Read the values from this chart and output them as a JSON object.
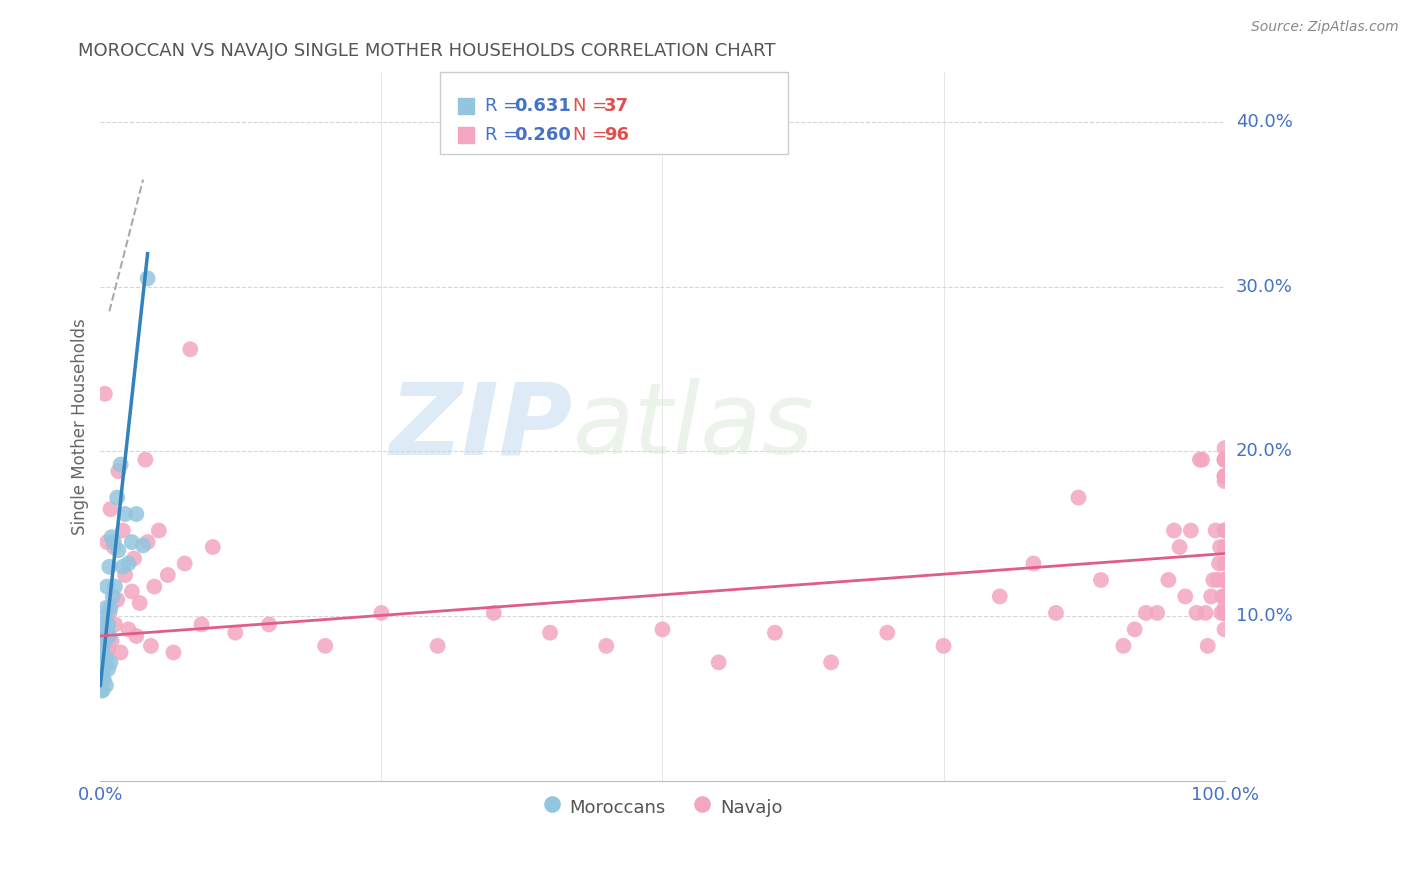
{
  "title": "MOROCCAN VS NAVAJO SINGLE MOTHER HOUSEHOLDS CORRELATION CHART",
  "source": "Source: ZipAtlas.com",
  "ylabel": "Single Mother Households",
  "watermark_zip": "ZIP",
  "watermark_atlas": "atlas",
  "legend_r1": "R = ",
  "legend_v1": "0.631",
  "legend_n1": "N = ",
  "legend_nv1": "37",
  "legend_r2": "R = ",
  "legend_v2": "0.260",
  "legend_n2": "N = ",
  "legend_nv2": "96",
  "moroccan_color": "#92c5de",
  "navajo_color": "#f4a6c0",
  "moroccan_line_color": "#3182bd",
  "navajo_line_color": "#e05c8a",
  "title_color": "#555555",
  "axis_label_color": "#4472c4",
  "right_tick_color": "#4472c4",
  "moroccan_scatter_x": [
    0.001,
    0.001,
    0.001,
    0.001,
    0.002,
    0.002,
    0.002,
    0.003,
    0.003,
    0.004,
    0.004,
    0.004,
    0.005,
    0.005,
    0.005,
    0.006,
    0.006,
    0.007,
    0.007,
    0.008,
    0.008,
    0.009,
    0.009,
    0.01,
    0.011,
    0.012,
    0.013,
    0.015,
    0.016,
    0.018,
    0.02,
    0.022,
    0.025,
    0.028,
    0.032,
    0.038,
    0.042
  ],
  "moroccan_scatter_y": [
    0.055,
    0.065,
    0.072,
    0.06,
    0.08,
    0.068,
    0.055,
    0.09,
    0.062,
    0.085,
    0.1,
    0.072,
    0.105,
    0.075,
    0.058,
    0.118,
    0.092,
    0.095,
    0.068,
    0.13,
    0.088,
    0.105,
    0.072,
    0.148,
    0.112,
    0.145,
    0.118,
    0.172,
    0.14,
    0.192,
    0.13,
    0.162,
    0.132,
    0.145,
    0.162,
    0.143,
    0.305
  ],
  "navajo_scatter_x": [
    0.003,
    0.004,
    0.005,
    0.006,
    0.007,
    0.008,
    0.009,
    0.01,
    0.012,
    0.013,
    0.015,
    0.016,
    0.018,
    0.02,
    0.022,
    0.025,
    0.028,
    0.03,
    0.032,
    0.035,
    0.04,
    0.042,
    0.045,
    0.048,
    0.052,
    0.06,
    0.065,
    0.075,
    0.08,
    0.09,
    0.1,
    0.12,
    0.15,
    0.2,
    0.25,
    0.3,
    0.35,
    0.4,
    0.45,
    0.5,
    0.55,
    0.6,
    0.65,
    0.7,
    0.75,
    0.8,
    0.83,
    0.85,
    0.87,
    0.89,
    0.91,
    0.92,
    0.93,
    0.94,
    0.95,
    0.955,
    0.96,
    0.965,
    0.97,
    0.975,
    0.978,
    0.98,
    0.983,
    0.985,
    0.988,
    0.99,
    0.992,
    0.994,
    0.995,
    0.996,
    0.997,
    0.998,
    0.999,
    1.0,
    1.0,
    1.0,
    1.0,
    1.0,
    1.0,
    1.0,
    1.0,
    1.0,
    1.0,
    1.0,
    1.0,
    1.0,
    1.0,
    1.0,
    1.0,
    1.0,
    1.0,
    1.0,
    1.0,
    1.0,
    1.0,
    1.0
  ],
  "navajo_scatter_y": [
    0.095,
    0.235,
    0.088,
    0.145,
    0.08,
    0.102,
    0.165,
    0.085,
    0.142,
    0.095,
    0.11,
    0.188,
    0.078,
    0.152,
    0.125,
    0.092,
    0.115,
    0.135,
    0.088,
    0.108,
    0.195,
    0.145,
    0.082,
    0.118,
    0.152,
    0.125,
    0.078,
    0.132,
    0.262,
    0.095,
    0.142,
    0.09,
    0.095,
    0.082,
    0.102,
    0.082,
    0.102,
    0.09,
    0.082,
    0.092,
    0.072,
    0.09,
    0.072,
    0.09,
    0.082,
    0.112,
    0.132,
    0.102,
    0.172,
    0.122,
    0.082,
    0.092,
    0.102,
    0.102,
    0.122,
    0.152,
    0.142,
    0.112,
    0.152,
    0.102,
    0.195,
    0.195,
    0.102,
    0.082,
    0.112,
    0.122,
    0.152,
    0.122,
    0.132,
    0.142,
    0.102,
    0.112,
    0.122,
    0.092,
    0.132,
    0.195,
    0.202,
    0.102,
    0.102,
    0.112,
    0.122,
    0.142,
    0.182,
    0.195,
    0.122,
    0.102,
    0.152,
    0.152,
    0.112,
    0.112,
    0.102,
    0.185,
    0.195,
    0.185,
    0.185,
    0.105
  ],
  "moroccan_line_x": [
    0.0,
    0.042
  ],
  "moroccan_line_y": [
    0.058,
    0.32
  ],
  "navajo_line_x": [
    0.0,
    1.0
  ],
  "navajo_line_y": [
    0.088,
    0.138
  ],
  "dash_line_x": [
    0.008,
    0.038
  ],
  "dash_line_y": [
    0.285,
    0.365
  ],
  "xlim": [
    0.0,
    1.0
  ],
  "ylim": [
    0.0,
    0.43
  ],
  "ytick_vals": [
    0.1,
    0.2,
    0.3,
    0.4
  ],
  "ytick_labels": [
    "10.0%",
    "20.0%",
    "30.0%",
    "40.0%"
  ],
  "background_color": "#ffffff",
  "grid_color": "#cccccc"
}
